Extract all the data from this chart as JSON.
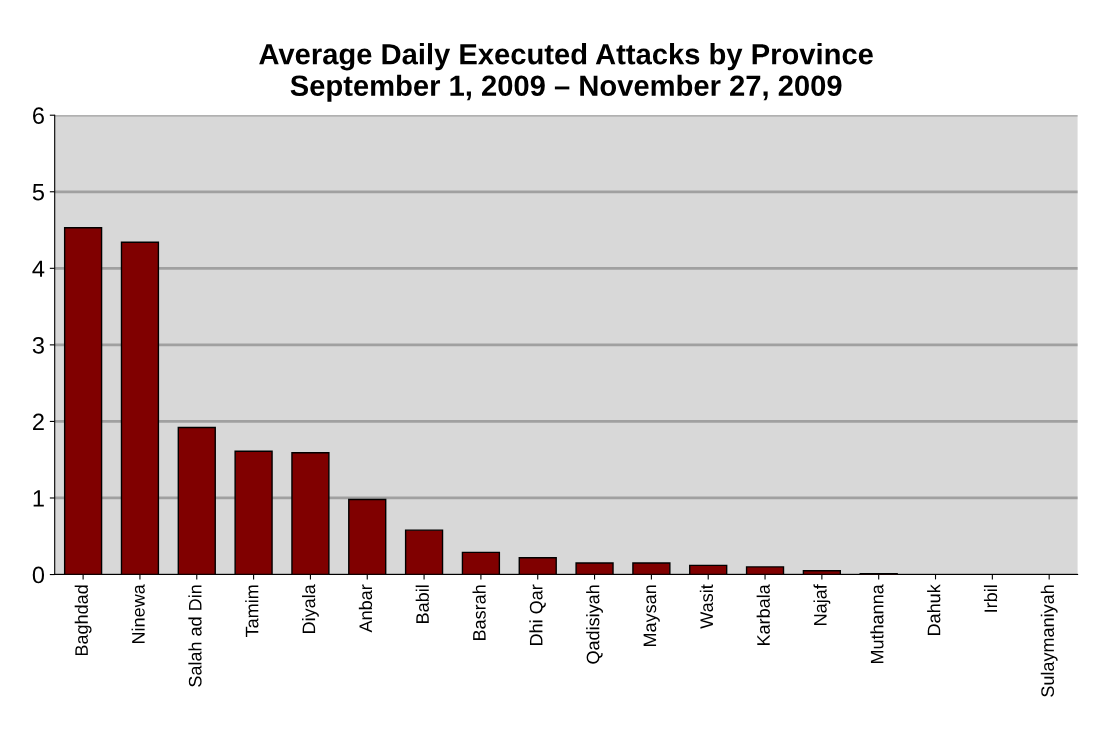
{
  "chart_data": {
    "type": "bar",
    "title": "Average Daily Executed Attacks by Province\nSeptember 1, 2009 – November 27, 2009",
    "categories": [
      "Baghdad",
      "Ninewa",
      "Salah ad Din",
      "Tamim",
      "Diyala",
      "Anbar",
      "Babil",
      "Basrah",
      "Dhi Qar",
      "Qadisiyah",
      "Maysan",
      "Wasit",
      "Karbala",
      "Najaf",
      "Muthanna",
      "Dahuk",
      "Irbil",
      "Sulaymaniyah"
    ],
    "values": [
      4.53,
      4.34,
      1.92,
      1.61,
      1.59,
      0.98,
      0.58,
      0.29,
      0.22,
      0.15,
      0.15,
      0.12,
      0.1,
      0.05,
      0.01,
      0,
      0,
      0
    ],
    "color": "#800000",
    "ylim": [
      0,
      6
    ],
    "yticks": [
      0,
      1,
      2,
      3,
      4,
      5,
      6
    ],
    "grid": "y",
    "legend": false
  }
}
